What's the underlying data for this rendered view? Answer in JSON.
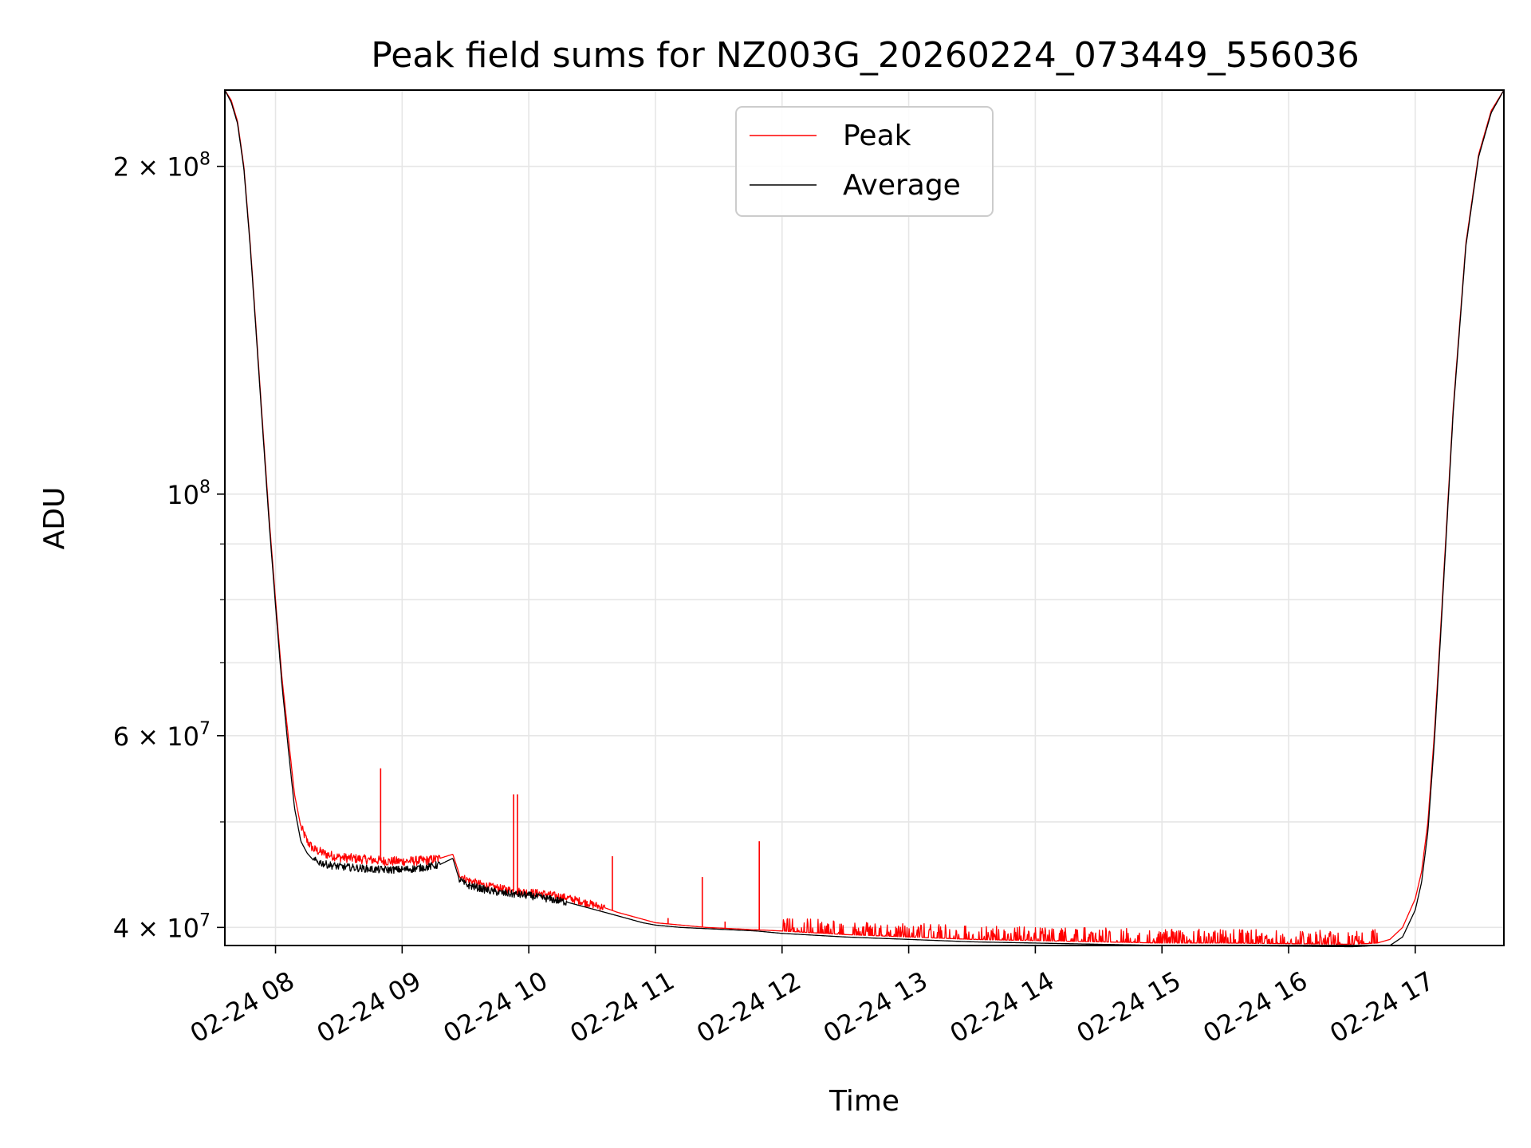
{
  "chart_data": {
    "type": "line",
    "title": "Peak field sums for NZ003G_20260224_073449_556036",
    "xlabel": "Time",
    "ylabel": "ADU",
    "yscale": "log",
    "grid": true,
    "legend_position": "top-center",
    "x_range_hours": [
      7.6,
      17.7
    ],
    "ylim": [
      38500000,
      235000000
    ],
    "x_ticks": [
      {
        "value": 8,
        "label": "02-24 08"
      },
      {
        "value": 9,
        "label": "02-24 09"
      },
      {
        "value": 10,
        "label": "02-24 10"
      },
      {
        "value": 11,
        "label": "02-24 11"
      },
      {
        "value": 12,
        "label": "02-24 12"
      },
      {
        "value": 13,
        "label": "02-24 13"
      },
      {
        "value": 14,
        "label": "02-24 14"
      },
      {
        "value": 15,
        "label": "02-24 15"
      },
      {
        "value": 16,
        "label": "02-24 16"
      },
      {
        "value": 17,
        "label": "02-24 17"
      }
    ],
    "y_major_ticks": [
      {
        "value": 40000000,
        "base": "4 × 10",
        "exp": "7"
      },
      {
        "value": 60000000,
        "base": "6 × 10",
        "exp": "7"
      },
      {
        "value": 100000000,
        "base": "10",
        "exp": "8"
      },
      {
        "value": 200000000,
        "base": "2 × 10",
        "exp": "8"
      }
    ],
    "y_minor_ticks": [
      50000000,
      70000000,
      80000000,
      90000000
    ],
    "series": [
      {
        "name": "Peak",
        "color": "#ff0000",
        "x": [
          7.6,
          7.65,
          7.7,
          7.75,
          7.8,
          7.85,
          7.9,
          7.95,
          8.0,
          8.05,
          8.1,
          8.15,
          8.2,
          8.25,
          8.3,
          8.4,
          8.5,
          8.6,
          8.7,
          8.8,
          8.9,
          9.0,
          9.1,
          9.2,
          9.3,
          9.35,
          9.4,
          9.45,
          9.5,
          9.6,
          9.7,
          9.8,
          9.9,
          10.0,
          10.1,
          10.2,
          10.3,
          10.4,
          10.5,
          10.6,
          10.7,
          10.8,
          10.9,
          11.0,
          11.2,
          11.4,
          11.6,
          11.8,
          12.0,
          12.5,
          13.0,
          13.5,
          14.0,
          14.5,
          15.0,
          15.5,
          16.0,
          16.5,
          16.7,
          16.8,
          16.9,
          17.0,
          17.05,
          17.1,
          17.15,
          17.2,
          17.3,
          17.4,
          17.5,
          17.6,
          17.7
        ],
        "y": [
          235000000,
          230000000,
          220000000,
          200000000,
          170000000,
          140000000,
          115000000,
          95000000,
          80000000,
          68000000,
          60000000,
          53000000,
          49500000,
          48000000,
          47200000,
          46700000,
          46400000,
          46300000,
          46200000,
          46100000,
          46000000,
          46000000,
          46050000,
          46100000,
          46300000,
          46500000,
          46700000,
          44800000,
          44300000,
          43900000,
          43600000,
          43400000,
          43200000,
          43100000,
          43000000,
          42800000,
          42600000,
          42300000,
          42000000,
          41700000,
          41300000,
          41000000,
          40700000,
          40400000,
          40200000,
          40000000,
          39900000,
          39800000,
          39700000,
          39400000,
          39200000,
          39000000,
          38900000,
          38800000,
          38700000,
          38700000,
          38650000,
          38600000,
          38700000,
          39000000,
          40000000,
          42500000,
          45000000,
          50000000,
          60000000,
          75000000,
          120000000,
          170000000,
          205000000,
          225000000,
          235000000
        ],
        "spikes": [
          {
            "x": 8.83,
            "y": 56000000
          },
          {
            "x": 9.88,
            "y": 53000000
          },
          {
            "x": 9.91,
            "y": 53000000
          },
          {
            "x": 10.66,
            "y": 46500000
          },
          {
            "x": 11.37,
            "y": 44500000
          },
          {
            "x": 11.82,
            "y": 48000000
          },
          {
            "x": 11.1,
            "y": 40800000
          },
          {
            "x": 11.55,
            "y": 40500000
          },
          {
            "x": 10.46,
            "y": 42300000
          }
        ],
        "noise_band": [
          {
            "from": 8.2,
            "to": 9.3,
            "frac": 0.01
          },
          {
            "from": 9.45,
            "to": 10.6,
            "frac": 0.008
          },
          {
            "from": 12.0,
            "to": 16.7,
            "frac": 0.03
          }
        ]
      },
      {
        "name": "Average",
        "color": "#000000",
        "x": [
          7.6,
          7.65,
          7.7,
          7.75,
          7.8,
          7.85,
          7.9,
          7.95,
          8.0,
          8.05,
          8.1,
          8.15,
          8.2,
          8.25,
          8.3,
          8.4,
          8.5,
          8.6,
          8.7,
          8.8,
          8.9,
          9.0,
          9.1,
          9.2,
          9.3,
          9.35,
          9.4,
          9.45,
          9.5,
          9.6,
          9.7,
          9.8,
          9.9,
          10.0,
          10.1,
          10.2,
          10.3,
          10.4,
          10.5,
          10.6,
          10.7,
          10.8,
          10.9,
          11.0,
          11.2,
          11.4,
          11.6,
          11.8,
          12.0,
          12.5,
          13.0,
          13.5,
          14.0,
          14.5,
          15.0,
          15.5,
          16.0,
          16.5,
          16.7,
          16.8,
          16.9,
          17.0,
          17.05,
          17.1,
          17.15,
          17.2,
          17.3,
          17.4,
          17.5,
          17.6,
          17.7
        ],
        "y": [
          235000000,
          229000000,
          219000000,
          199000000,
          169000000,
          139000000,
          114000000,
          94000000,
          79000000,
          67000000,
          58500000,
          51500000,
          48000000,
          46800000,
          46100000,
          45700000,
          45500000,
          45400000,
          45300000,
          45200000,
          45200000,
          45200000,
          45300000,
          45450000,
          45700000,
          46000000,
          46300000,
          44300000,
          43800000,
          43500000,
          43200000,
          43000000,
          42900000,
          42800000,
          42600000,
          42400000,
          42200000,
          41900000,
          41600000,
          41300000,
          41000000,
          40700000,
          40400000,
          40200000,
          40000000,
          39900000,
          39800000,
          39700000,
          39500000,
          39200000,
          39000000,
          38800000,
          38700000,
          38600000,
          38500000,
          38500000,
          38450000,
          38400000,
          38500000,
          38500000,
          39200000,
          41500000,
          44000000,
          49000000,
          59000000,
          74000000,
          119000000,
          169000000,
          204000000,
          224000000,
          235000000
        ],
        "noise_band": [
          {
            "from": 8.3,
            "to": 9.3,
            "frac": 0.008
          },
          {
            "from": 9.45,
            "to": 10.3,
            "frac": 0.008
          }
        ]
      }
    ]
  }
}
